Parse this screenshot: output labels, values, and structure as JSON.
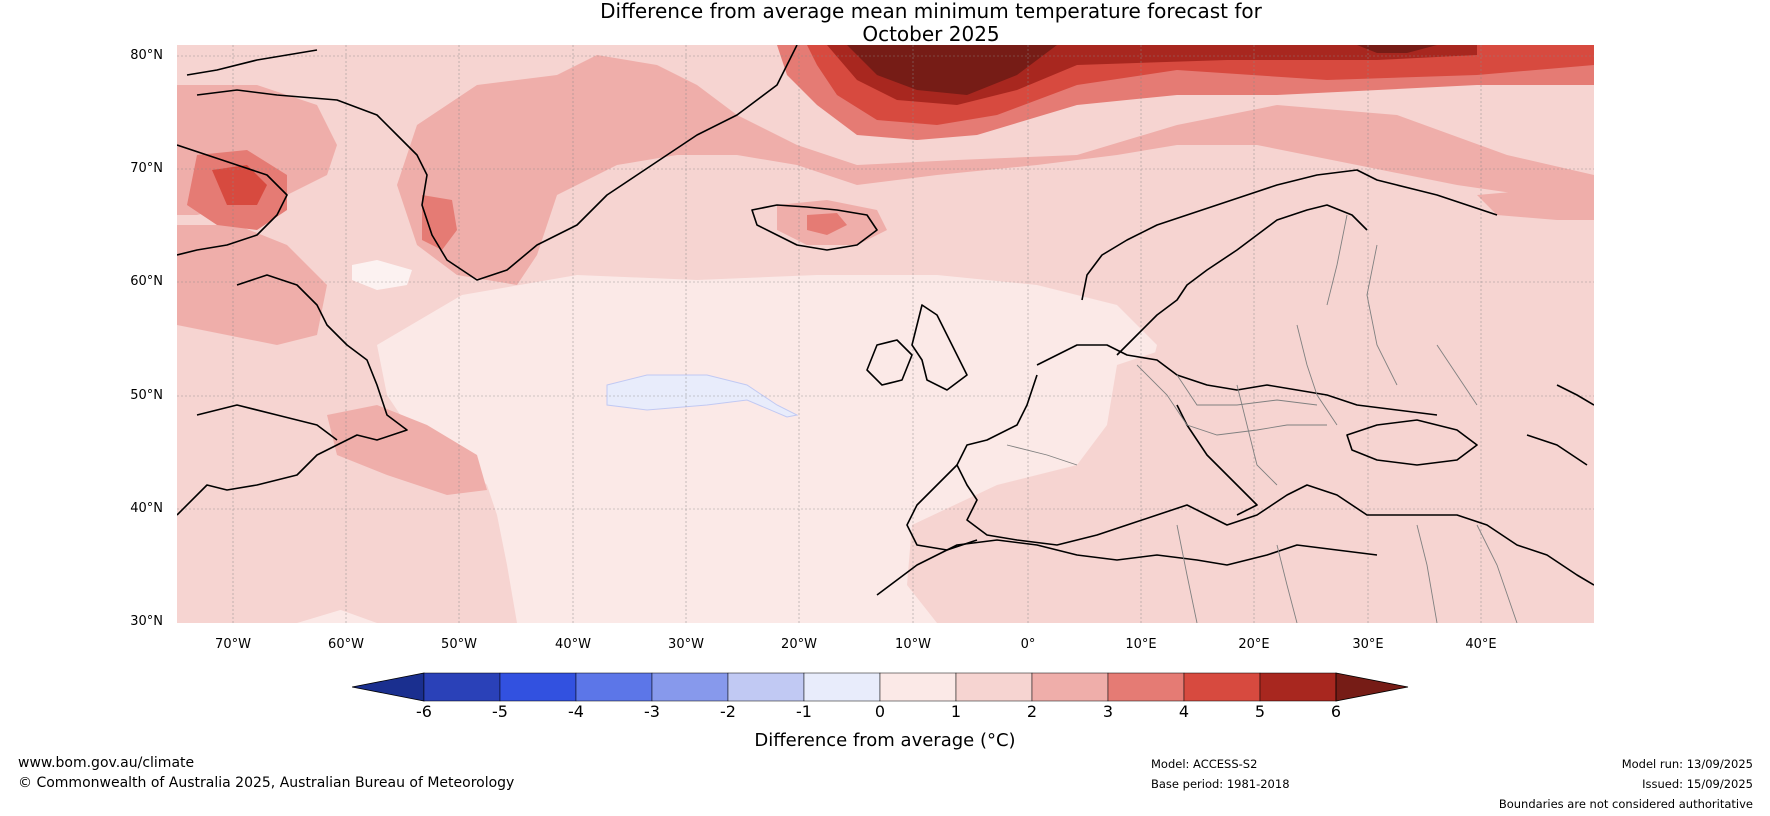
{
  "title_line1": "Difference from average mean minimum temperature forecast for",
  "title_line2": "October 2025",
  "lat_labels": [
    "80°N",
    "70°N",
    "60°N",
    "50°N",
    "40°N",
    "30°N"
  ],
  "lon_labels": [
    "70°W",
    "60°W",
    "50°W",
    "40°W",
    "30°W",
    "20°W",
    "10°W",
    "0°",
    "10°E",
    "20°E",
    "30°E",
    "40°E"
  ],
  "colorbar": {
    "ticks": [
      "-6",
      "-5",
      "-4",
      "-3",
      "-2",
      "-1",
      "0",
      "1",
      "2",
      "3",
      "4",
      "5",
      "6"
    ],
    "colors": [
      "#1a2f8f",
      "#2a41b8",
      "#3251e0",
      "#5c76e8",
      "#8799ec",
      "#c1c9f3",
      "#e8ecfb",
      "#fbe9e7",
      "#f6d4d1",
      "#efaeaa",
      "#e57b74",
      "#d74a3f",
      "#a8271f",
      "#761c16"
    ],
    "label": "Difference from average (°C)"
  },
  "footer": {
    "url": "www.bom.gov.au/climate",
    "copyright": "© Commonwealth of Australia 2025, Australian Bureau of Meteorology",
    "model": "Model: ACCESS-S2",
    "base_period": "Base period: 1981-2018",
    "model_run": "Model run: 13/09/2025",
    "issued": "Issued: 15/09/2025",
    "disclaimer": "Boundaries are not considered authoritative"
  }
}
